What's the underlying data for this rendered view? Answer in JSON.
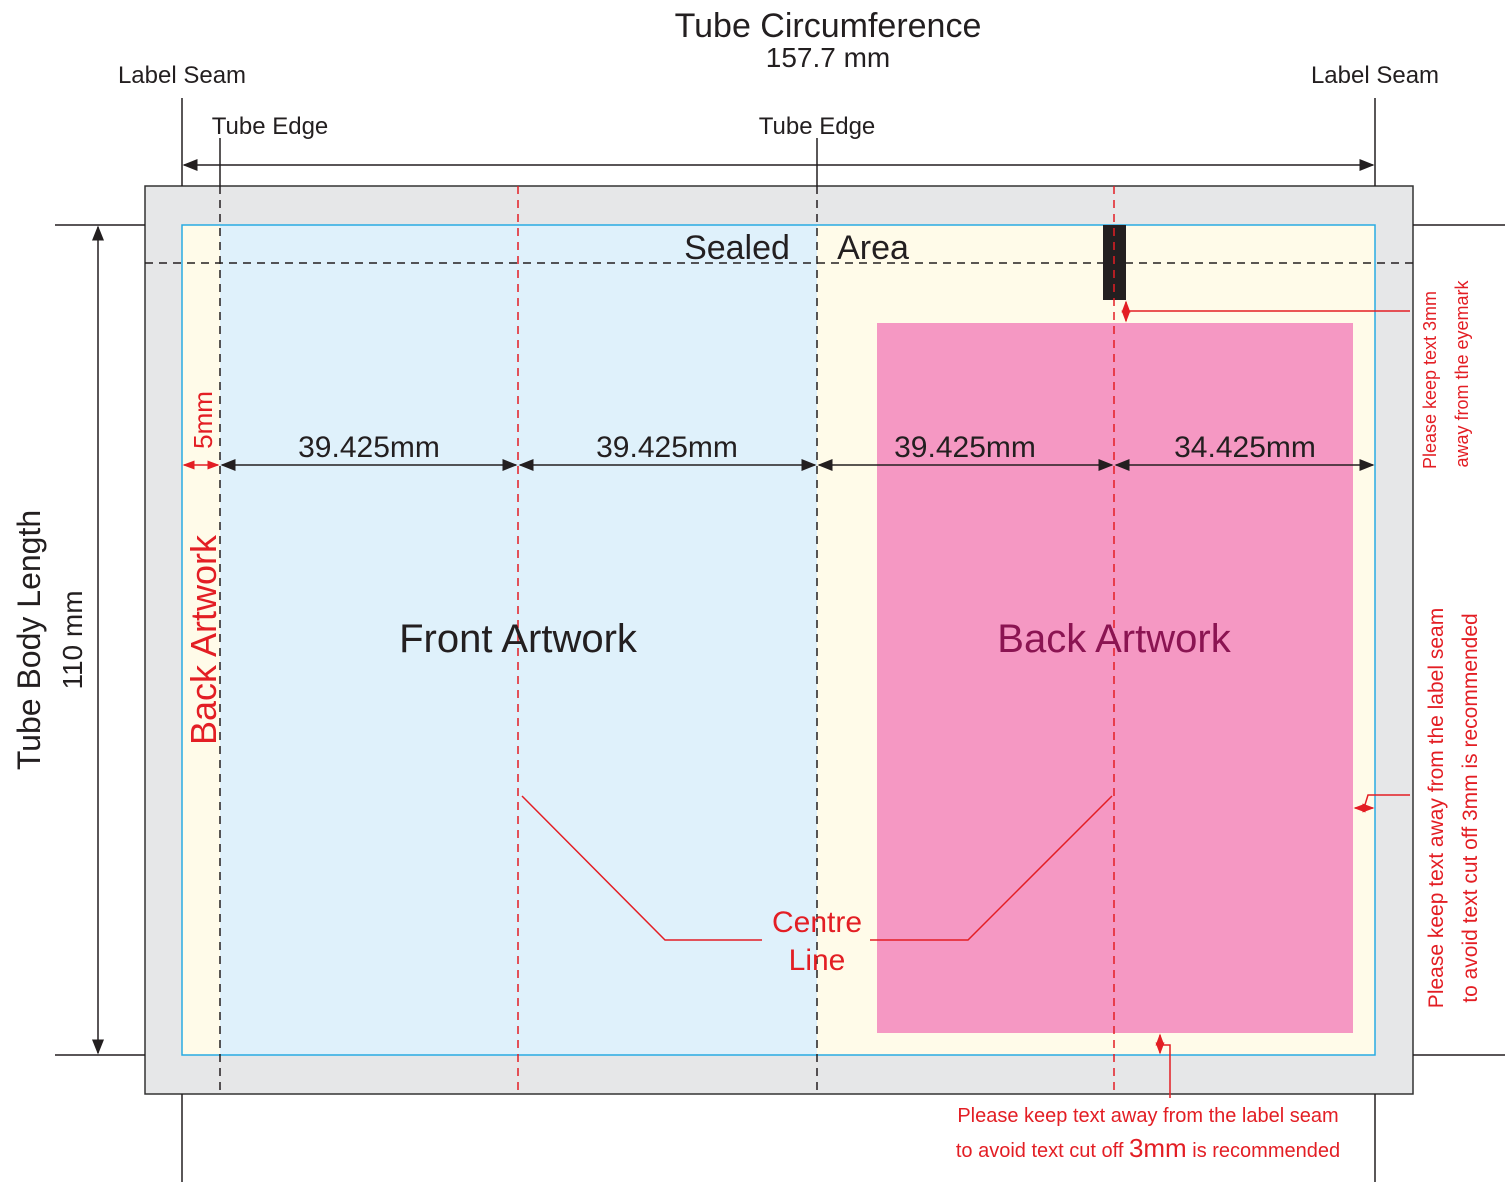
{
  "title": "Tube Circumference",
  "circumference": "157.7 mm",
  "label_seam_left": "Label Seam",
  "label_seam_right": "Label Seam",
  "tube_edge_left": "Tube Edge",
  "tube_edge_center": "Tube Edge",
  "length_label": "Tube Body Length",
  "length_value": "110 mm",
  "sealed": [
    "Sealed",
    "Area"
  ],
  "dimensions": [
    "5mm",
    "39.425mm",
    "39.425mm",
    "39.425mm",
    "34.425mm"
  ],
  "artwork": {
    "left_strip": "Back Artwork",
    "front": "Front Artwork",
    "back": "Back Artwork"
  },
  "centre_line": [
    "Centre",
    "Line"
  ],
  "eyemark_note": [
    "Please keep text 3mm",
    "away from the eyemark"
  ],
  "right_note": [
    "Please keep text away from the label seam",
    "to avoid text cut off 3mm is recommended"
  ],
  "bottom_note": {
    "line1": "Please keep text away from the label seam",
    "line2": [
      "to avoid text cut off ",
      "3mm",
      " is recommended"
    ]
  }
}
